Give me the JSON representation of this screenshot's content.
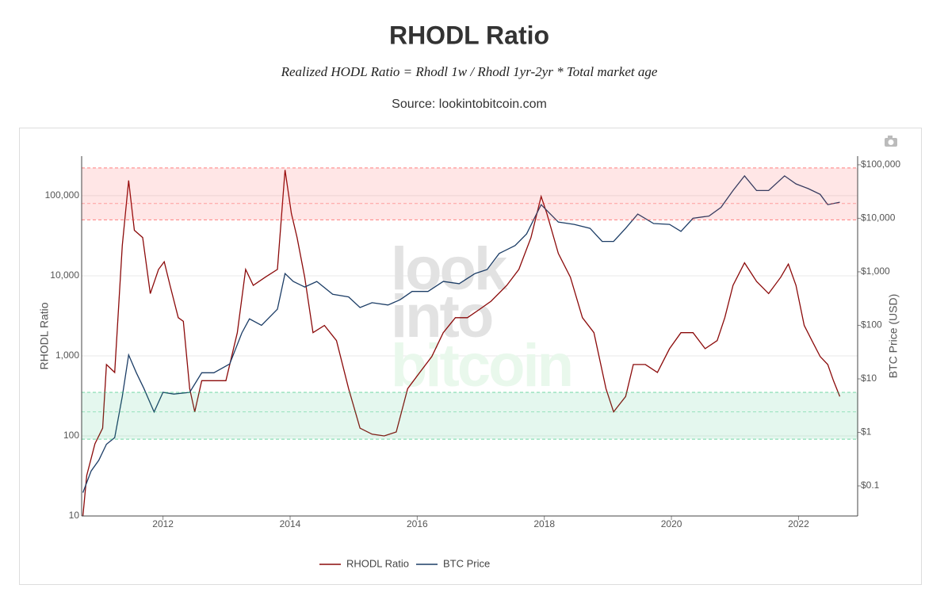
{
  "chart_data": {
    "type": "line",
    "title": "RHODL Ratio",
    "subtitle": "Realized HODL Ratio = Rhodl 1w / Rhodl 1yr-2yr * Total market age",
    "source": "Source: lookintobitcoin.com",
    "watermark": [
      "look",
      "into",
      "bitcoin"
    ],
    "y_label": "RHODL Ratio",
    "y2_label": "BTC Price (USD)",
    "log_y": true,
    "log_y2": true,
    "grid": true,
    "legend": "bottom",
    "xlim": [
      2010.72,
      2022.93
    ],
    "xticks": [
      2012,
      2014,
      2016,
      2018,
      2020,
      2022
    ],
    "ylim": [
      10,
      312000
    ],
    "yticks": [
      10,
      100,
      {
        "value": 1000,
        "label": "1,000"
      },
      {
        "value": 10000,
        "label": "10,000"
      },
      {
        "value": 100000,
        "label": "100,000"
      }
    ],
    "y2lim": [
      0.0274,
      145000
    ],
    "y2ticks": [
      {
        "value": 0.1,
        "label": "$0.1"
      },
      {
        "value": 1,
        "label": "$1"
      },
      {
        "value": 10,
        "label": "$10"
      },
      {
        "value": 100,
        "label": "$100"
      },
      {
        "value": 1000,
        "label": "$1,000"
      },
      {
        "value": 10000,
        "label": "$10,000"
      },
      {
        "value": 100000,
        "label": "$100,000"
      }
    ],
    "bands": [
      {
        "from": 50000,
        "to": 222000,
        "color": "#ff3030",
        "lines": [
          80000
        ]
      },
      {
        "from": 91,
        "to": 350,
        "color": "#20c070",
        "lines": [
          200
        ]
      }
    ],
    "series": [
      {
        "name": "RHODL Ratio",
        "color": "#8b0a0a",
        "x": [
          2010.74,
          2010.8,
          2010.93,
          2011.05,
          2011.11,
          2011.24,
          2011.36,
          2011.46,
          2011.55,
          2011.68,
          2011.8,
          2011.93,
          2012.02,
          2012.11,
          2012.24,
          2012.32,
          2012.42,
          2012.5,
          2012.61,
          2012.8,
          2012.99,
          2013.17,
          2013.3,
          2013.42,
          2013.61,
          2013.8,
          2013.92,
          2014.02,
          2014.11,
          2014.23,
          2014.36,
          2014.54,
          2014.73,
          2014.92,
          2015.1,
          2015.29,
          2015.48,
          2015.67,
          2015.85,
          2016.04,
          2016.23,
          2016.41,
          2016.6,
          2016.79,
          2016.98,
          2017.16,
          2017.41,
          2017.6,
          2017.79,
          2017.95,
          2018.04,
          2018.22,
          2018.41,
          2018.6,
          2018.78,
          2018.97,
          2019.09,
          2019.28,
          2019.4,
          2019.59,
          2019.78,
          2019.97,
          2020.15,
          2020.34,
          2020.53,
          2020.72,
          2020.84,
          2020.97,
          2021.15,
          2021.34,
          2021.53,
          2021.72,
          2021.84,
          2021.96,
          2022.09,
          2022.21,
          2022.34,
          2022.46,
          2022.55,
          2022.65
        ],
        "values": [
          10,
          32,
          80,
          125,
          780,
          620,
          24000,
          155000,
          37000,
          30000,
          6000,
          12000,
          15000,
          7600,
          3000,
          2700,
          390,
          200,
          490,
          490,
          490,
          1950,
          12000,
          7600,
          9600,
          12000,
          210000,
          60000,
          30000,
          9600,
          1950,
          2400,
          1550,
          390,
          125,
          105,
          100,
          112,
          390,
          620,
          980,
          1950,
          3000,
          3000,
          3800,
          4800,
          7600,
          12000,
          30000,
          98000,
          60000,
          19000,
          9600,
          3000,
          1950,
          390,
          200,
          310,
          780,
          780,
          620,
          1230,
          1950,
          1950,
          1230,
          1550,
          3000,
          7600,
          14500,
          8500,
          6000,
          9600,
          14000,
          7600,
          2400,
          1550,
          980,
          780,
          490,
          310
        ]
      },
      {
        "name": "BTC Price",
        "color": "#1c3d66",
        "axis": "y2",
        "x": [
          2010.74,
          2010.87,
          2010.99,
          2011.11,
          2011.24,
          2011.36,
          2011.46,
          2011.58,
          2011.7,
          2011.86,
          2012.0,
          2012.17,
          2012.42,
          2012.61,
          2012.8,
          2013.05,
          2013.24,
          2013.36,
          2013.55,
          2013.8,
          2013.92,
          2014.05,
          2014.23,
          2014.42,
          2014.67,
          2014.92,
          2015.1,
          2015.29,
          2015.54,
          2015.73,
          2015.92,
          2016.17,
          2016.41,
          2016.66,
          2016.91,
          2017.1,
          2017.29,
          2017.54,
          2017.72,
          2017.95,
          2018.04,
          2018.22,
          2018.47,
          2018.72,
          2018.91,
          2019.09,
          2019.28,
          2019.47,
          2019.72,
          2019.97,
          2020.15,
          2020.34,
          2020.59,
          2020.78,
          2020.97,
          2021.15,
          2021.34,
          2021.53,
          2021.78,
          2021.96,
          2022.15,
          2022.34,
          2022.46,
          2022.65
        ],
        "values": [
          0.075,
          0.19,
          0.3,
          0.6,
          0.8,
          4.7,
          28,
          13,
          6.6,
          2.4,
          5.6,
          5.2,
          5.6,
          13,
          13,
          19,
          72,
          132,
          100,
          200,
          930,
          660,
          520,
          660,
          380,
          340,
          215,
          265,
          240,
          300,
          430,
          430,
          660,
          600,
          930,
          1100,
          2200,
          3100,
          5100,
          18000,
          14000,
          8500,
          7700,
          6500,
          3700,
          3700,
          6500,
          12000,
          8000,
          7700,
          5700,
          10000,
          11000,
          16000,
          33000,
          62000,
          33000,
          33000,
          62000,
          44000,
          36000,
          28000,
          18000,
          20000
        ]
      }
    ]
  }
}
